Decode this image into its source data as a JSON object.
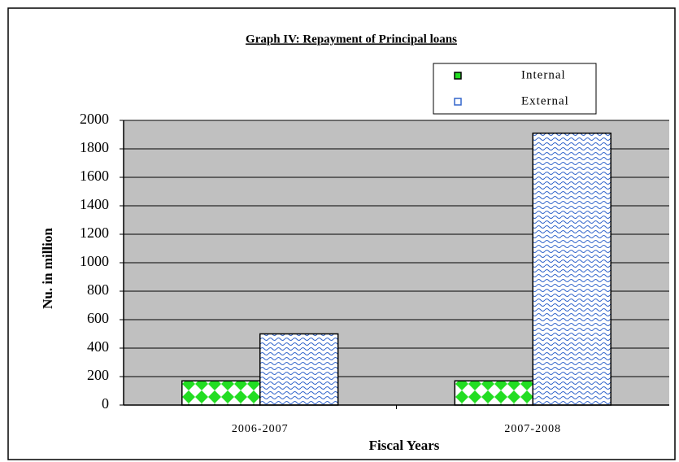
{
  "chart_data": {
    "type": "bar",
    "title": "Graph IV: Repayment of Principal loans",
    "x_label": "Fiscal Years",
    "y_label": "Nu. in million",
    "categories": [
      "2006-2007",
      "2007-2008"
    ],
    "series": [
      {
        "name": "Internal",
        "color": "#22dd22",
        "values": [
          170,
          170
        ]
      },
      {
        "name": "External",
        "color": "#3366cc",
        "values": [
          500,
          1910
        ]
      }
    ],
    "ylim": [
      0,
      2000
    ],
    "yticks": [
      0,
      200,
      400,
      600,
      800,
      1000,
      1200,
      1400,
      1600,
      1800,
      2000
    ],
    "grid": true,
    "legend": "top-right"
  }
}
